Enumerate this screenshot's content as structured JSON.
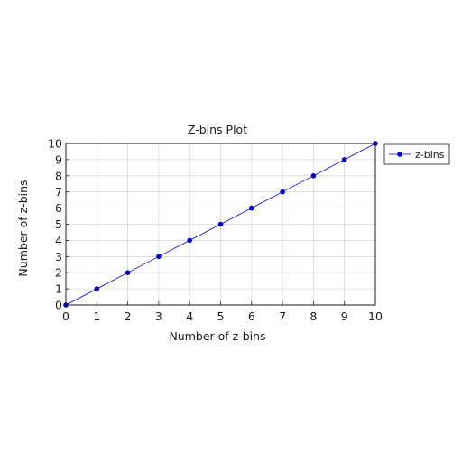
{
  "chart_data": {
    "type": "line",
    "title": "Z-bins Plot",
    "xlabel": "Number of z-bins",
    "ylabel": "Number of z-bins",
    "xlim": [
      0,
      10
    ],
    "ylim": [
      0,
      10
    ],
    "xticks": [
      0,
      1,
      2,
      3,
      4,
      5,
      6,
      7,
      8,
      9,
      10
    ],
    "yticks": [
      0,
      1,
      2,
      3,
      4,
      5,
      6,
      7,
      8,
      9,
      10
    ],
    "grid": true,
    "legend_position": "outside-right-top",
    "series": [
      {
        "name": "z-bins",
        "color": "#0000cc",
        "marker": "circle",
        "x": [
          0,
          1,
          2,
          3,
          4,
          5,
          6,
          7,
          8,
          9,
          10
        ],
        "y": [
          0,
          1,
          2,
          3,
          4,
          5,
          6,
          7,
          8,
          9,
          10
        ]
      }
    ]
  }
}
